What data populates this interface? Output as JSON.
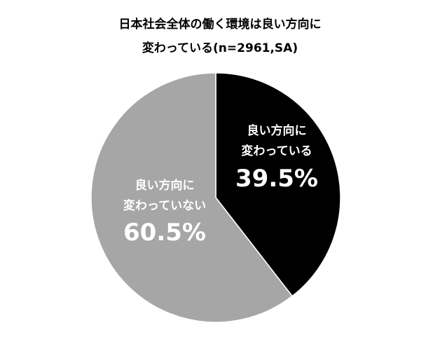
{
  "title_lines": [
    "日本社会全体の働く環境は良い方向に",
    "変わっている(n=2961,SA)"
  ],
  "chart_data": {
    "type": "pie",
    "title": "日本社会全体の働く環境は良い方向に変わっている(n=2961,SA)",
    "slices": [
      {
        "label_lines": [
          "良い方向に",
          "変わっている"
        ],
        "value": 39.5,
        "value_label": "39.5%",
        "color": "#000000",
        "text_color": "#ffffff"
      },
      {
        "label_lines": [
          "良い方向に",
          "変わっていない"
        ],
        "value": 60.5,
        "value_label": "60.5%",
        "color": "#a6a6a6",
        "text_color": "#ffffff"
      }
    ],
    "start_angle": "12 o'clock",
    "direction": "clockwise",
    "legend": "none"
  }
}
